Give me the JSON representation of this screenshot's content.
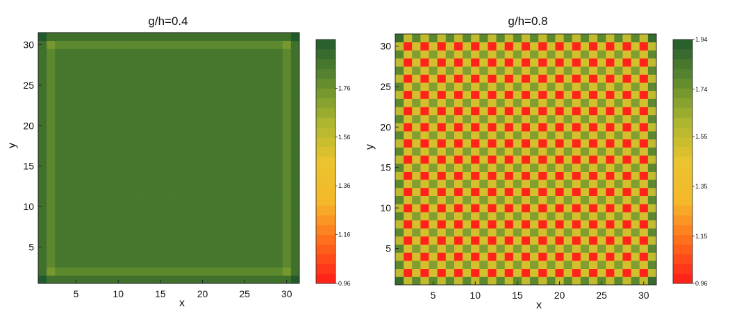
{
  "chart_data": [
    {
      "type": "heatmap",
      "title": "g/h=0.4",
      "xlabel": "x",
      "ylabel": "y",
      "xlim": [
        0.5,
        31.5
      ],
      "ylim": [
        0.5,
        31.5
      ],
      "x_ticks": [
        "5",
        "10",
        "15",
        "20",
        "25",
        "30"
      ],
      "y_ticks": [
        "5",
        "10",
        "15",
        "20",
        "25",
        "30"
      ],
      "grid_size": 31,
      "pattern": "uniform interior (~1.86) with lighter border lines at rows/columns 2 and 30; darker corners (~1.96)",
      "values": {
        "corner": 1.96,
        "edge": 1.88,
        "line": 1.8,
        "line_cross": 1.74,
        "interior": 1.86
      },
      "colorbar": {
        "min": 0.96,
        "max": 1.96,
        "tick_labels": [
          "0.96",
          "1.16",
          "1.36",
          "1.56",
          "1.76"
        ],
        "tick_values": [
          0.96,
          1.16,
          1.36,
          1.56,
          1.76
        ],
        "colors": [
          "#ff1a1a",
          "#ff6a1a",
          "#f6b82a",
          "#e9c42e",
          "#a9b52f",
          "#5e8a2e",
          "#225a2c"
        ]
      }
    },
    {
      "type": "heatmap",
      "title": "g/h=0.8",
      "xlabel": "x",
      "ylabel": "y",
      "xlim": [
        0.5,
        31.5
      ],
      "ylim": [
        0.5,
        31.5
      ],
      "x_ticks": [
        "5",
        "10",
        "15",
        "20",
        "25",
        "30"
      ],
      "y_ticks": [
        "5",
        "10",
        "15",
        "20",
        "25",
        "30"
      ],
      "grid_size": 31,
      "pattern": "checkerboard; red (~0.98) where row and column are both even, green-yellow (~1.70) where both odd, yellow (~1.50) mixed; greener border",
      "values": {
        "even_even": 0.98,
        "odd_odd": 1.7,
        "mixed": 1.5,
        "edge_even": 1.55,
        "edge_odd": 1.78,
        "corner": 1.88
      },
      "colorbar": {
        "min": 0.96,
        "max": 1.94,
        "tick_labels": [
          "0.96",
          "1.15",
          "1.35",
          "1.55",
          "1.74",
          "1.94"
        ],
        "tick_values": [
          0.96,
          1.15,
          1.35,
          1.55,
          1.74,
          1.94
        ],
        "colors": [
          "#ff1a1a",
          "#ff6a1a",
          "#f6b82a",
          "#e9c42e",
          "#a9b52f",
          "#5e8a2e",
          "#225a2c"
        ]
      }
    }
  ]
}
